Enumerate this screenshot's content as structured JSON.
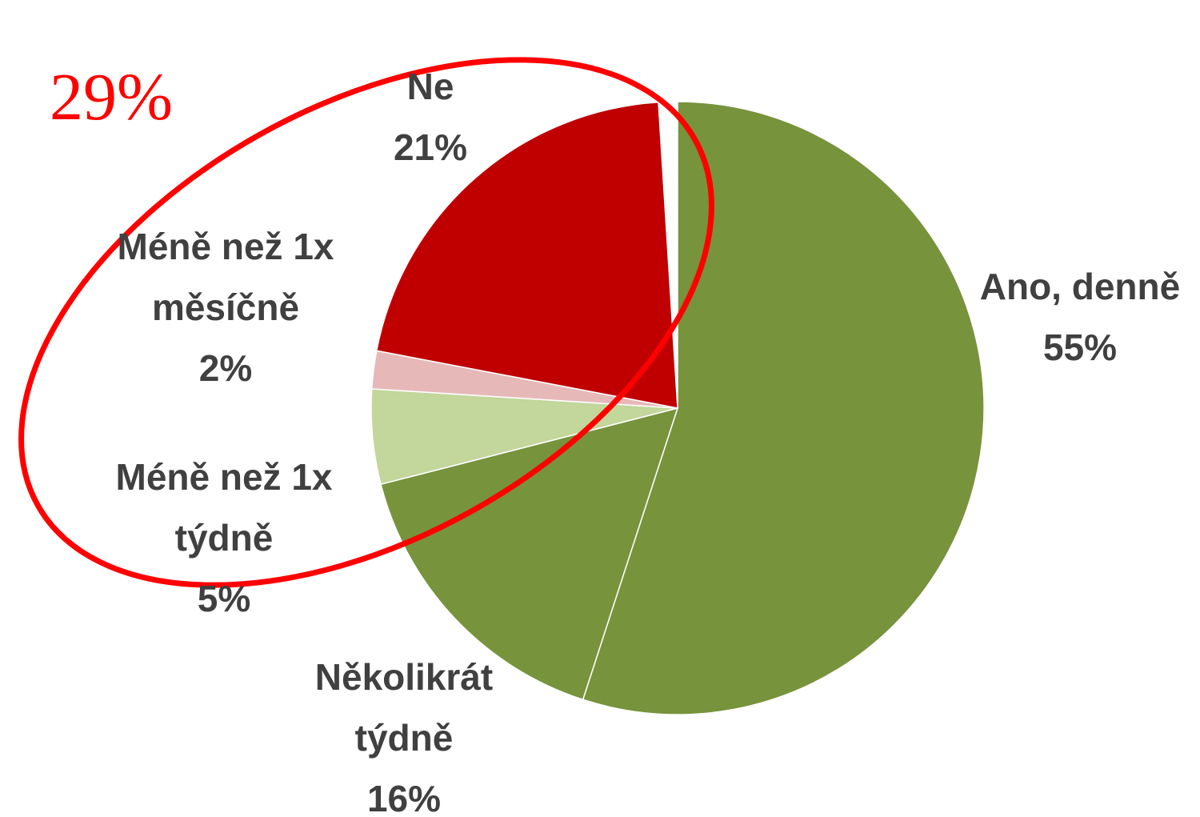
{
  "chart_data": {
    "type": "pie",
    "categories": [
      "Ano, denně",
      "Několikrát týdně",
      "Méně než 1x týdně",
      "Méně než 1x měsíčně",
      "Ne"
    ],
    "values": [
      55,
      16,
      5,
      2,
      21
    ],
    "value_labels": [
      "55%",
      "16%",
      "5%",
      "2%",
      "21%"
    ],
    "colors": [
      "#77933c",
      "#77933c",
      "#c3d69b",
      "#e6b9b8",
      "#c00000"
    ],
    "annotation": "29%"
  }
}
